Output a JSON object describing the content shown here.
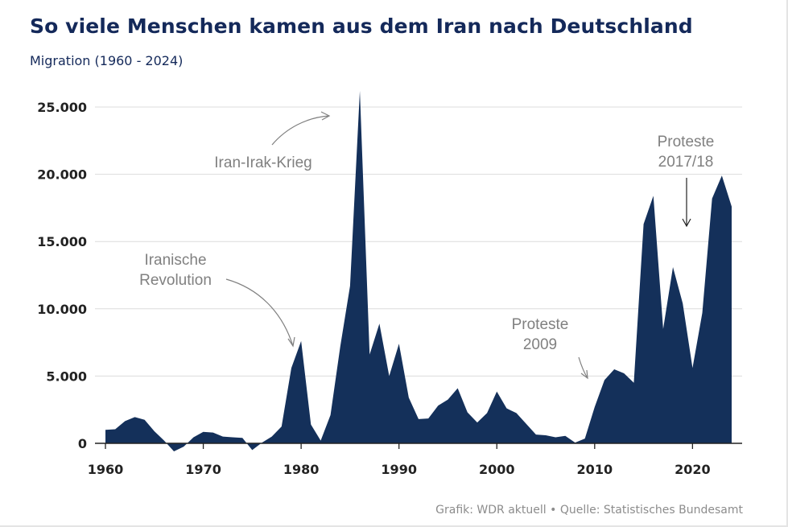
{
  "title": "So viele Menschen kamen aus dem Iran nach Deutschland",
  "subtitle": "Migration (1960 - 2024)",
  "footer": {
    "credit": "Grafik: WDR aktuell",
    "separator": "•",
    "source": "Quelle: Statistisches Bundesamt"
  },
  "colors": {
    "area": "#14305a",
    "title": "#14295a",
    "grid": "#dcdcdc",
    "annotation": "#808080"
  },
  "chart_data": {
    "type": "area",
    "title": "So viele Menschen kamen aus dem Iran nach Deutschland",
    "subtitle": "Migration (1960 - 2024)",
    "xlabel": "",
    "ylabel": "",
    "xlim": [
      1960,
      2024
    ],
    "ylim": [
      -1000,
      26000
    ],
    "grid": true,
    "x_ticks": [
      1960,
      1970,
      1980,
      1990,
      2000,
      2010,
      2020
    ],
    "x_tick_labels": [
      "1960",
      "1970",
      "1980",
      "1990",
      "2000",
      "2010",
      "2020"
    ],
    "y_ticks": [
      0,
      5000,
      10000,
      15000,
      20000,
      25000
    ],
    "y_tick_labels": [
      "0",
      "5.000",
      "10.000",
      "15.000",
      "20.000",
      "25.000"
    ],
    "series": [
      {
        "x": [
          1960,
          1961,
          1962,
          1963,
          1964,
          1965,
          1966,
          1967,
          1968,
          1969,
          1970,
          1971,
          1972,
          1973,
          1974,
          1975,
          1976,
          1977,
          1978,
          1979,
          1980,
          1981,
          1982,
          1983,
          1984,
          1985,
          1986,
          1987,
          1988,
          1989,
          1990,
          1991,
          1992,
          1993,
          1994,
          1995,
          1996,
          1997,
          1998,
          1999,
          2000,
          2001,
          2002,
          2003,
          2004,
          2005,
          2006,
          2007,
          2008,
          2009,
          2010,
          2011,
          2012,
          2013,
          2014,
          2015,
          2016,
          2017,
          2018,
          2019,
          2020,
          2021,
          2022,
          2023,
          2024
        ],
        "values": [
          1000,
          1050,
          1650,
          1950,
          1750,
          900,
          200,
          -600,
          -250,
          450,
          850,
          800,
          500,
          450,
          400,
          -500,
          50,
          500,
          1250,
          5600,
          7600,
          1400,
          200,
          2100,
          7200,
          11700,
          26200,
          6600,
          8900,
          5000,
          7400,
          3400,
          1800,
          1850,
          2800,
          3250,
          4100,
          2300,
          1550,
          2250,
          3850,
          2600,
          2250,
          1450,
          650,
          600,
          450,
          550,
          50,
          350,
          2700,
          4700,
          5500,
          5200,
          4500,
          16300,
          18400,
          8500,
          13100,
          10400,
          5600,
          9700,
          18200,
          19900,
          17600
        ]
      }
    ],
    "annotations": [
      {
        "id": "revolution",
        "lines": [
          "Iranische",
          "Revolution"
        ]
      },
      {
        "id": "war",
        "lines": [
          "Iran-Irak-Krieg"
        ]
      },
      {
        "id": "protests2009",
        "lines": [
          "Proteste",
          "2009"
        ]
      },
      {
        "id": "protests2017",
        "lines": [
          "Proteste",
          "2017/18"
        ]
      }
    ]
  }
}
